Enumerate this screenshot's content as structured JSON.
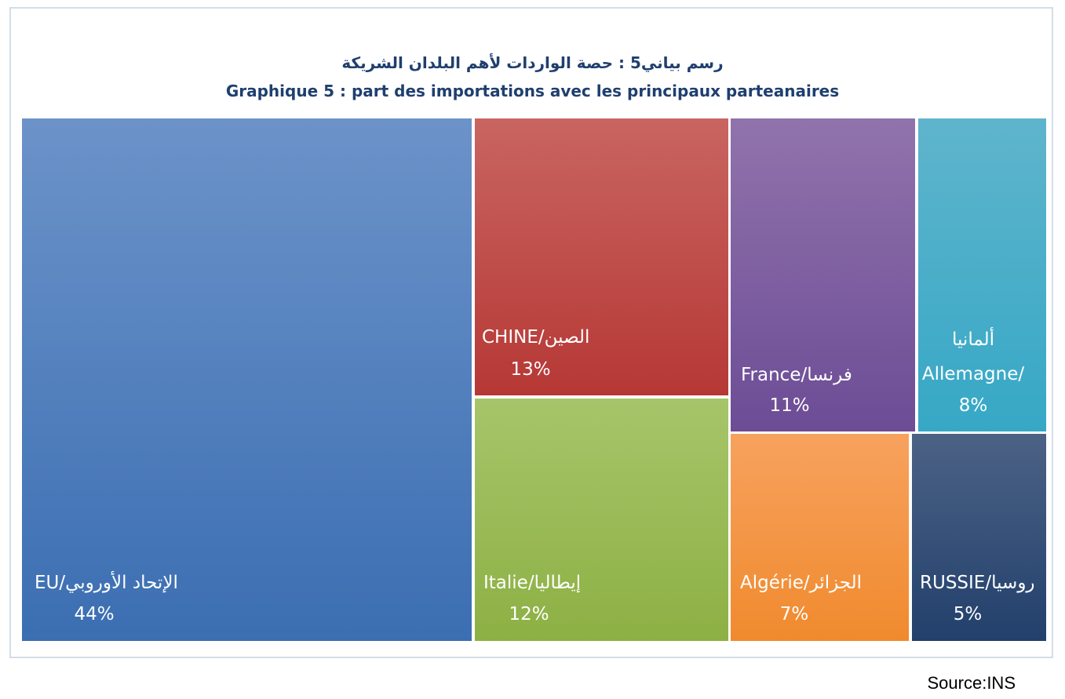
{
  "chart_data": {
    "type": "treemap",
    "title_ar": "رسم بياني5 :  حصة الواردات لأهم البلدان الشريكة",
    "title_fr": "Graphique 5 : part des importations avec les principaux parteanaires",
    "items": [
      {
        "label": "EU/الإتحاد الأوروبي",
        "value_label": "44%",
        "value": 44,
        "color_top": "#6c93c9",
        "color_bottom": "#3b6eb2"
      },
      {
        "label": "CHINE/الصين",
        "value_label": "13%",
        "value": 13,
        "color_top": "#c96561",
        "color_bottom": "#b63835"
      },
      {
        "label": "Italie/إيطاليا",
        "value_label": "12%",
        "value": 12,
        "color_top": "#a6c56a",
        "color_bottom": "#8db044"
      },
      {
        "label": "France/فرنسا",
        "value_label": "11%",
        "value": 11,
        "color_top": "#9173ac",
        "color_bottom": "#6c4c95"
      },
      {
        "label_line1": "ألمانيا",
        "label_line2": "Allemagne/",
        "value_label": "8%",
        "value": 8,
        "color_top": "#5fb4cc",
        "color_bottom": "#36a8c6"
      },
      {
        "label": "Algérie/الجزائر",
        "value_label": "7%",
        "value": 7,
        "color_top": "#f7a25e",
        "color_bottom": "#f08a2e"
      },
      {
        "label": "RUSSIE/روسيا",
        "value_label": "5%",
        "value": 5,
        "color_top": "#4c6285",
        "color_bottom": "#22406c"
      }
    ]
  },
  "source": "Source:INS"
}
